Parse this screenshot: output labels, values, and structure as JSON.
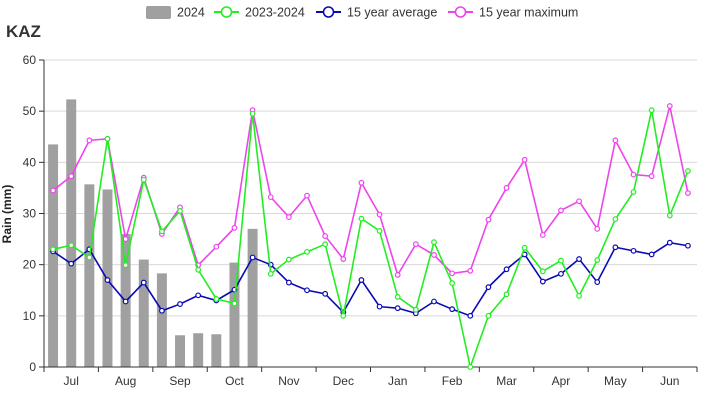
{
  "chart_data": {
    "type": "bar+line",
    "title": "KAZ",
    "ylabel": "Rain (mm)",
    "ylim": [
      0,
      60
    ],
    "yticks": [
      0,
      10,
      20,
      30,
      40,
      50,
      60
    ],
    "months": [
      "Jul",
      "Aug",
      "Sep",
      "Oct",
      "Nov",
      "Dec",
      "Jan",
      "Feb",
      "Mar",
      "Apr",
      "May",
      "Jun"
    ],
    "grid": true,
    "legend_position": "top-center",
    "bar_series": {
      "name": "2024",
      "color": "#a0a0a0",
      "values": [
        43.5,
        52.3,
        35.7,
        34.7,
        26.0,
        21.0,
        18.3,
        6.2,
        6.6,
        6.4,
        20.4,
        27.0
      ]
    },
    "line_series": [
      {
        "name": "2023-2024",
        "color": "#22ee22",
        "values": [
          23.0,
          23.8,
          21.4,
          44.6,
          19.9,
          36.6,
          26.5,
          30.5,
          19.0,
          13.3,
          12.4,
          49.5,
          18.2,
          21.0,
          22.5,
          24.0,
          10.0,
          29.0,
          26.6,
          13.7,
          11.2,
          24.4,
          16.4,
          0.0,
          10.0,
          14.2,
          23.3,
          18.7,
          20.8,
          13.9,
          20.9,
          28.9,
          34.2,
          50.2,
          29.6,
          38.3
        ]
      },
      {
        "name": "15 year average",
        "color": "#0a0ab4",
        "values": [
          22.6,
          20.2,
          23.0,
          17.0,
          12.8,
          16.5,
          11.0,
          12.3,
          14.0,
          13.0,
          15.1,
          21.4,
          20.0,
          16.5,
          15.0,
          14.3,
          10.7,
          17.0,
          11.8,
          11.5,
          10.5,
          12.8,
          11.3,
          10.0,
          15.6,
          19.1,
          22.0,
          16.7,
          18.2,
          21.1,
          16.6,
          23.4,
          22.7,
          22.0,
          24.3,
          23.7
        ]
      },
      {
        "name": "15 year maximum",
        "color": "#ee44ee",
        "values": [
          34.5,
          37.3,
          44.3,
          44.6,
          25.0,
          37.0,
          26.0,
          31.2,
          19.9,
          23.5,
          27.2,
          50.2,
          33.2,
          29.3,
          33.5,
          25.6,
          21.1,
          36.0,
          29.8,
          18.0,
          24.0,
          21.9,
          18.3,
          18.8,
          28.8,
          35.0,
          40.5,
          25.8,
          30.6,
          32.4,
          27.0,
          44.3,
          37.6,
          37.3,
          51.0,
          34.0
        ]
      }
    ]
  }
}
